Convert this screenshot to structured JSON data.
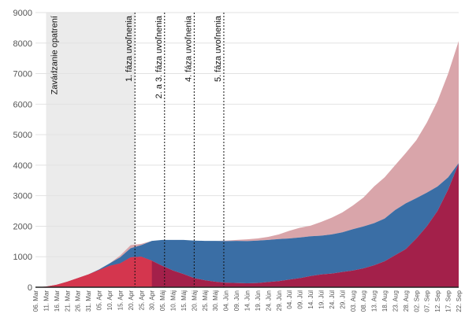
{
  "colors": {
    "total_area": "#d9a5aa",
    "recovered_area": "#3a6ea5",
    "active_area": "#a3204a",
    "early_active_area": "#d4364e",
    "shade": "#ebebeb",
    "grid": "#e2e2e2"
  },
  "chart_data": {
    "type": "area",
    "title": "",
    "xlabel": "",
    "ylabel": "",
    "ylim": [
      0,
      9000
    ],
    "yticks": [
      0,
      1000,
      2000,
      3000,
      4000,
      5000,
      6000,
      7000,
      8000,
      9000
    ],
    "grid": true,
    "stacked": true,
    "x_start": "06. Mar",
    "x_end": "22. Sep",
    "xtick_labels": [
      "06. Mar",
      "11. Mar",
      "16. Mar",
      "21. Mar",
      "26. Mar",
      "31. Mar",
      "05. Apr",
      "10. Apr",
      "15. Apr",
      "20. Apr",
      "25. Apr",
      "30. Apr",
      "05. Máj",
      "10. Máj",
      "15. Máj",
      "20. Máj",
      "25. Máj",
      "30. Máj",
      "04. Jún",
      "09. Jún",
      "14. Jún",
      "19. Jún",
      "24. Jún",
      "29. Jún",
      "04. Júl",
      "09. Júl",
      "14. Júl",
      "19. Júl",
      "24. Júl",
      "29. Júl",
      "03. Aug",
      "08. Aug",
      "13. Aug",
      "18. Aug",
      "23. Aug",
      "28. Aug",
      "02. Sep",
      "07. Sep",
      "12. Sep",
      "17. Sep",
      "22. Sep"
    ],
    "shaded_period": {
      "label": "Zavádzanie opatrení",
      "from": "11. Mar",
      "to": "22. Apr"
    },
    "annotations": [
      {
        "label": "1. fáza uvoľnenia",
        "date": "22. Apr"
      },
      {
        "label": "2. a 3. fáza uvoľnenia",
        "date": "6. Máj"
      },
      {
        "label": "4. fáza uvoľnenia",
        "date": "20. Máj"
      },
      {
        "label": "5. fáza uvoľnenia",
        "date": "3. Jún"
      }
    ],
    "series": [
      {
        "key": "active",
        "x": [
          "06. Mar",
          "11. Mar",
          "16. Mar",
          "21. Mar",
          "26. Mar",
          "31. Mar",
          "05. Apr",
          "10. Apr",
          "15. Apr",
          "20. Apr",
          "25. Apr",
          "30. Apr",
          "05. Máj",
          "10. Máj",
          "15. Máj",
          "20. Máj",
          "25. Máj",
          "30. Máj",
          "04. Jún",
          "09. Jún",
          "14. Jún",
          "19. Jún",
          "24. Jún",
          "29. Jún",
          "04. Júl",
          "09. Júl",
          "14. Júl",
          "19. Júl",
          "24. Júl",
          "29. Júl",
          "03. Aug",
          "08. Aug",
          "13. Aug",
          "18. Aug",
          "23. Aug",
          "28. Aug",
          "02. Sep",
          "07. Sep",
          "12. Sep",
          "17. Sep",
          "22. Sep"
        ],
        "values": [
          0,
          20,
          80,
          180,
          300,
          420,
          560,
          700,
          780,
          980,
          1000,
          870,
          700,
          550,
          430,
          300,
          230,
          180,
          150,
          140,
          130,
          140,
          170,
          200,
          250,
          300,
          370,
          420,
          450,
          500,
          550,
          620,
          720,
          850,
          1050,
          1250,
          1600,
          2000,
          2500,
          3200,
          4050
        ]
      },
      {
        "key": "recovered",
        "x": [
          "06. Mar",
          "11. Mar",
          "16. Mar",
          "21. Mar",
          "26. Mar",
          "31. Mar",
          "05. Apr",
          "10. Apr",
          "15. Apr",
          "20. Apr",
          "25. Apr",
          "30. Apr",
          "05. Máj",
          "10. Máj",
          "15. Máj",
          "20. Máj",
          "25. Máj",
          "30. Máj",
          "04. Jún",
          "09. Jún",
          "14. Jún",
          "19. Jún",
          "24. Jún",
          "29. Jún",
          "04. Júl",
          "09. Júl",
          "14. Júl",
          "19. Júl",
          "24. Júl",
          "29. Júl",
          "03. Aug",
          "08. Aug",
          "13. Aug",
          "18. Aug",
          "23. Aug",
          "28. Aug",
          "02. Sep",
          "07. Sep",
          "12. Sep",
          "17. Sep",
          "22. Sep"
        ],
        "values": [
          0,
          0,
          0,
          0,
          0,
          0,
          20,
          80,
          200,
          300,
          380,
          650,
          850,
          1000,
          1120,
          1230,
          1290,
          1340,
          1360,
          1380,
          1380,
          1390,
          1380,
          1380,
          1350,
          1330,
          1300,
          1270,
          1280,
          1300,
          1350,
          1370,
          1380,
          1400,
          1480,
          1500,
          1320,
          1100,
          800,
          400,
          20
        ]
      },
      {
        "key": "deaths_other",
        "x": [
          "06. Mar",
          "11. Mar",
          "16. Mar",
          "21. Mar",
          "26. Mar",
          "31. Mar",
          "05. Apr",
          "10. Apr",
          "15. Apr",
          "20. Apr",
          "25. Apr",
          "30. Apr",
          "05. Máj",
          "10. Máj",
          "15. Máj",
          "20. Máj",
          "25. Máj",
          "30. Máj",
          "04. Jún",
          "09. Jún",
          "14. Jún",
          "19. Jún",
          "24. Jún",
          "29. Jún",
          "04. Júl",
          "09. Júl",
          "14. Júl",
          "19. Júl",
          "24. Júl",
          "29. Júl",
          "03. Aug",
          "08. Aug",
          "13. Aug",
          "18. Aug",
          "23. Aug",
          "28. Aug",
          "02. Sep",
          "07. Sep",
          "12. Sep",
          "17. Sep",
          "22. Sep"
        ],
        "values": [
          0,
          0,
          0,
          0,
          0,
          0,
          0,
          0,
          60,
          100,
          40,
          0,
          0,
          0,
          0,
          0,
          0,
          0,
          20,
          30,
          60,
          70,
          100,
          150,
          250,
          320,
          350,
          450,
          550,
          650,
          780,
          950,
          1200,
          1350,
          1470,
          1650,
          1900,
          2300,
          2800,
          3400,
          4000
        ]
      }
    ]
  }
}
